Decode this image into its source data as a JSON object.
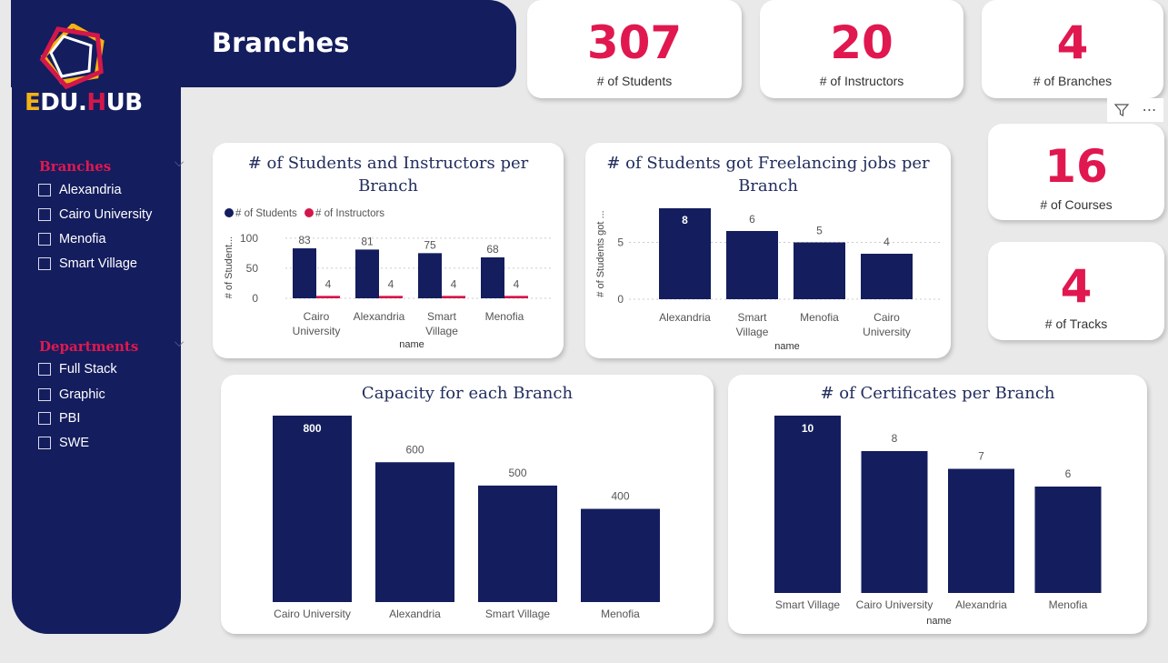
{
  "header": {
    "title": "Branches"
  },
  "logo": {
    "text_part1": "E",
    "text_part2": "DU.",
    "text_part3": "H",
    "text_part4": "UB"
  },
  "slicers": {
    "branches": {
      "title": "Branches",
      "items": [
        "Alexandria",
        "Cairo University",
        "Menofia",
        "Smart Village"
      ]
    },
    "departments": {
      "title": "Departments",
      "items": [
        "Full Stack",
        "Graphic",
        "PBI",
        "SWE"
      ]
    }
  },
  "kpis": {
    "students": {
      "value": "307",
      "label": "# of Students"
    },
    "instructors": {
      "value": "20",
      "label": "# of Instructors"
    },
    "branches": {
      "value": "4",
      "label": "# of Branches"
    },
    "courses": {
      "value": "16",
      "label": "# of Courses"
    },
    "tracks": {
      "value": "4",
      "label": "# of Tracks"
    }
  },
  "colors": {
    "navy": "#141d5e",
    "accent": "#e0184f",
    "bar": "#141d5e",
    "bar_alt": "#d3174b"
  },
  "visual_header_icons": [
    "filter-icon",
    "more-options-icon"
  ],
  "chart_data": [
    {
      "type": "bar",
      "title": "# of Students and Instructors per Branch",
      "xlabel": "name",
      "ylabel": "# of Student...",
      "categories": [
        "Cairo University",
        "Alexandria",
        "Smart Village",
        "Menofia"
      ],
      "series": [
        {
          "name": "# of Students",
          "values": [
            83,
            81,
            75,
            68
          ]
        },
        {
          "name": "# of Instructors",
          "values": [
            4,
            4,
            4,
            4
          ]
        }
      ],
      "yticks": [
        "0",
        "50",
        "100"
      ],
      "ylim": [
        0,
        110
      ],
      "legend": "top-left"
    },
    {
      "type": "bar",
      "title": "# of Students got Freelancing jobs per Branch",
      "xlabel": "name",
      "ylabel": "# of Students got ...",
      "categories": [
        "Alexandria",
        "Smart Village",
        "Menofia",
        "Cairo University"
      ],
      "values": [
        8,
        6,
        5,
        4
      ],
      "yticks": [
        "0",
        "5"
      ],
      "ylim": [
        0,
        8.4
      ]
    },
    {
      "type": "bar",
      "title": "Capacity for each Branch",
      "categories": [
        "Cairo University",
        "Alexandria",
        "Smart Village",
        "Menofia"
      ],
      "values": [
        800,
        600,
        500,
        400
      ],
      "ylim": [
        0,
        800
      ]
    },
    {
      "type": "bar",
      "title": "# of Certificates per Branch",
      "xlabel": "name",
      "categories": [
        "Smart Village",
        "Cairo University",
        "Alexandria",
        "Menofia"
      ],
      "values": [
        10,
        8,
        7,
        6
      ],
      "ylim": [
        0,
        10
      ]
    }
  ]
}
